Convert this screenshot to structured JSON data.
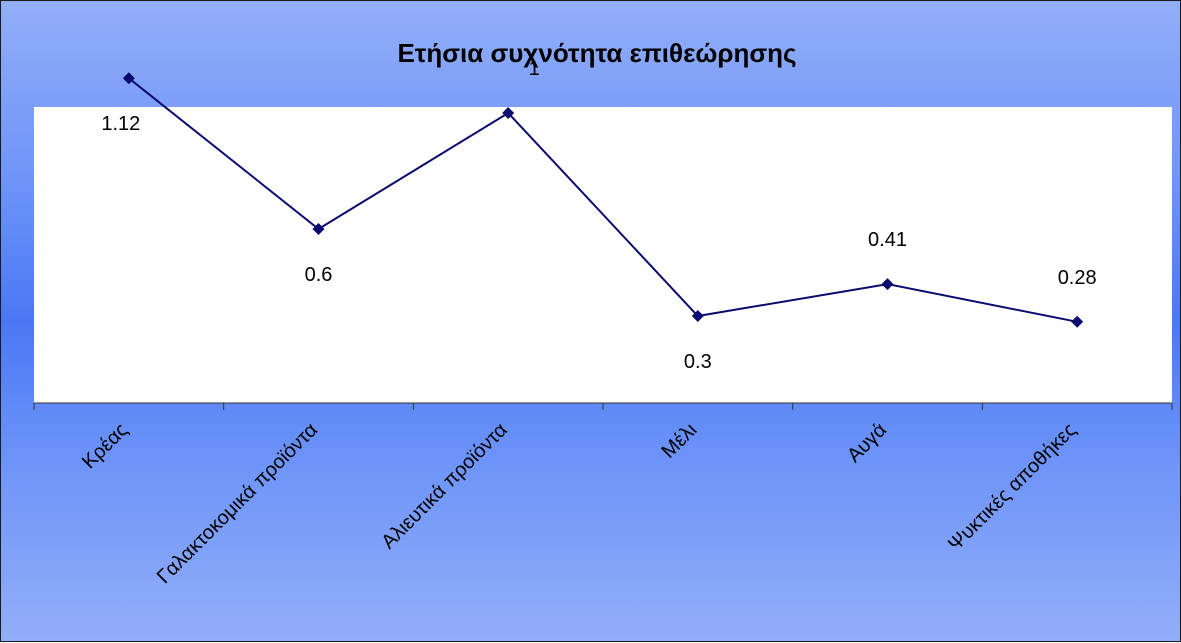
{
  "chart_data": {
    "type": "line",
    "title": "Ετήσια συχνότητα επιθεώρησης",
    "categories": [
      "Κρέας",
      "Γαλακτοκομικά προϊόντα",
      "Αλιευτικά προϊόντα",
      "Μέλι",
      "Αυγά",
      "Ψυκτικές αποθήκες"
    ],
    "series": [
      {
        "values": [
          1.12,
          0.6,
          1,
          0.3,
          0.41,
          0.28
        ],
        "color": "#0a0a6e"
      }
    ],
    "data_labels": [
      "1.12",
      "0.6",
      "1",
      "0.3",
      "0.41",
      "0.28"
    ],
    "ylim": [
      0,
      1.2
    ],
    "grid": false,
    "legend": "none",
    "colors": {
      "plot_area": "#ffffff",
      "line": "#0a0a6e"
    }
  }
}
